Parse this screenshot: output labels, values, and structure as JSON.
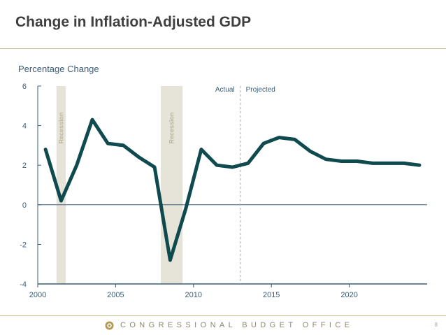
{
  "slide": {
    "title": "Change in Inflation-Adjusted GDP",
    "footer_org": "CONGRESSIONAL BUDGET OFFICE",
    "page_number": "8"
  },
  "colors": {
    "line": "#0f4a4f",
    "axis": "#3b5d78",
    "recession_band": "#e6e4d8",
    "rule": "#c8c39a"
  },
  "icons": {
    "footer_logo": "cbo-seal-icon"
  },
  "chart_data": {
    "type": "line",
    "title": "",
    "ylabel": "Percentage Change",
    "xlabel": "",
    "xlim": [
      2000,
      2025
    ],
    "ylim": [
      -4,
      6
    ],
    "xticks": [
      "2000",
      "2005",
      "2010",
      "2015",
      "2020"
    ],
    "yticks": [
      "6",
      "4",
      "2",
      "0",
      "-2",
      "-4"
    ],
    "series": [
      {
        "x": [
          2000.5,
          2001.5,
          2002.5,
          2003.5,
          2004.5,
          2005.5,
          2006.5,
          2007.5,
          2008.5,
          2009.5,
          2010.5,
          2011.5,
          2012.5,
          2013.5,
          2014.5,
          2015.5,
          2016.5,
          2017.5,
          2018.5,
          2019.5,
          2020.5,
          2021.5,
          2022.5,
          2023.5,
          2024.5
        ],
        "y": [
          2.8,
          0.2,
          2.0,
          4.3,
          3.1,
          3.0,
          2.4,
          1.9,
          -2.8,
          -0.2,
          2.8,
          2.0,
          1.9,
          2.1,
          3.1,
          3.4,
          3.3,
          2.7,
          2.3,
          2.2,
          2.2,
          2.1,
          2.1,
          2.1,
          2.0
        ]
      }
    ],
    "recessions": [
      {
        "start": 2001.2,
        "end": 2001.8,
        "label": "Recession"
      },
      {
        "start": 2007.9,
        "end": 2009.3,
        "label": "Recession"
      }
    ],
    "divider": {
      "x": 2013,
      "left_label": "Actual",
      "right_label": "Projected"
    },
    "grid": false,
    "legend": "none"
  }
}
